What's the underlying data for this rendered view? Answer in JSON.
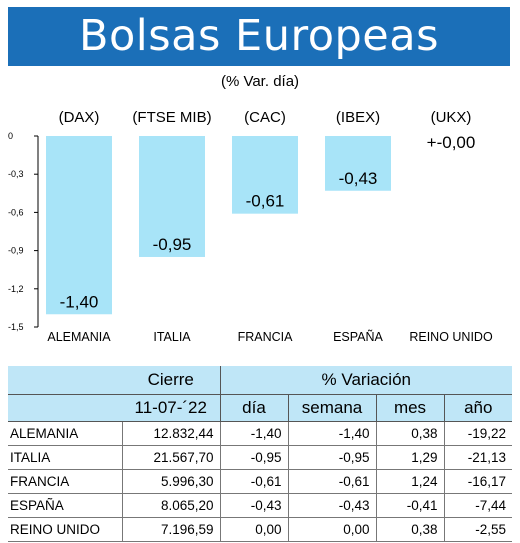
{
  "header": {
    "title": "Bolsas Europeas",
    "subtitle": "(% Var. día)"
  },
  "chart_data": {
    "type": "bar",
    "indices": [
      "(DAX)",
      "(FTSE MIB)",
      "(CAC)",
      "(IBEX)",
      "(UKX)"
    ],
    "categories": [
      "ALEMANIA",
      "ITALIA",
      "FRANCIA",
      "ESPAÑA",
      "REINO UNIDO"
    ],
    "values": [
      -1.4,
      -0.95,
      -0.61,
      -0.43,
      0.0
    ],
    "value_labels": [
      "-1,40",
      "-0,95",
      "-0,61",
      "-0,43",
      "+-0,00"
    ],
    "y_ticks": [
      "0",
      "-0,3",
      "-0,6",
      "-0,9",
      "-1,2",
      "-1,5"
    ],
    "ylim": [
      -1.5,
      0
    ],
    "bar_color": "#a8e4f8"
  },
  "table": {
    "header_cierre": "Cierre",
    "header_variacion": "% Variación",
    "date": "11-07-´22",
    "col_dia": "día",
    "col_semana": "semana",
    "col_mes": "mes",
    "col_ano": "año",
    "rows": [
      {
        "country": "ALEMANIA",
        "cierre": "12.832,44",
        "dia": "-1,40",
        "semana": "-1,40",
        "mes": "0,38",
        "ano": "-19,22"
      },
      {
        "country": "ITALIA",
        "cierre": "21.567,70",
        "dia": "-0,95",
        "semana": "-0,95",
        "mes": "1,29",
        "ano": "-21,13"
      },
      {
        "country": "FRANCIA",
        "cierre": "5.996,30",
        "dia": "-0,61",
        "semana": "-0,61",
        "mes": "1,24",
        "ano": "-16,17"
      },
      {
        "country": "ESPAÑA",
        "cierre": "8.065,20",
        "dia": "-0,43",
        "semana": "-0,43",
        "mes": "-0,41",
        "ano": "-7,44"
      },
      {
        "country": "REINO UNIDO",
        "cierre": "7.196,59",
        "dia": "0,00",
        "semana": "0,00",
        "mes": "0,38",
        "ano": "-2,55"
      }
    ]
  }
}
